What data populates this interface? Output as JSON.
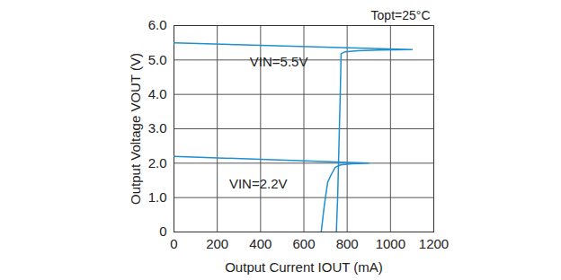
{
  "chart_data": {
    "type": "line",
    "title": "Topt=25°C",
    "x_label": "Output Current IOUT (mA)",
    "y_label": "Output Voltage VOUT (V)",
    "xlim": [
      0,
      1200
    ],
    "xticks": [
      0,
      200,
      400,
      600,
      800,
      1000,
      1200
    ],
    "ylim": [
      0,
      6
    ],
    "yticks": [
      0,
      {
        "value": 1,
        "label": "1.0"
      },
      {
        "value": 2,
        "label": "2.0"
      },
      {
        "value": 3,
        "label": "3.0"
      },
      {
        "value": 4,
        "label": "4.0"
      },
      {
        "value": 5,
        "label": "5.0"
      },
      {
        "value": 6,
        "label": "6.0"
      }
    ],
    "grid": true,
    "series": [
      {
        "name": "VIN=5.5V",
        "color": "#1f8fcf",
        "x": [
          0,
          1100,
          950,
          850,
          790,
          772,
          768,
          762,
          756,
          750
        ],
        "values": [
          5.5,
          5.3,
          5.29,
          5.27,
          5.24,
          5.18,
          4.0,
          2.5,
          1.0,
          0
        ]
      },
      {
        "name": "VIN=2.2V",
        "color": "#1f8fcf",
        "x": [
          0,
          900,
          820,
          770,
          745,
          725,
          710,
          695,
          680
        ],
        "values": [
          2.2,
          2.0,
          1.98,
          1.95,
          1.88,
          1.65,
          1.45,
          0.8,
          0
        ]
      }
    ],
    "annotations": [
      {
        "text": "VIN=5.5V",
        "x": 350,
        "y": 4.95
      },
      {
        "text": "VIN=2.2V",
        "x": 255,
        "y": 1.4
      }
    ]
  }
}
